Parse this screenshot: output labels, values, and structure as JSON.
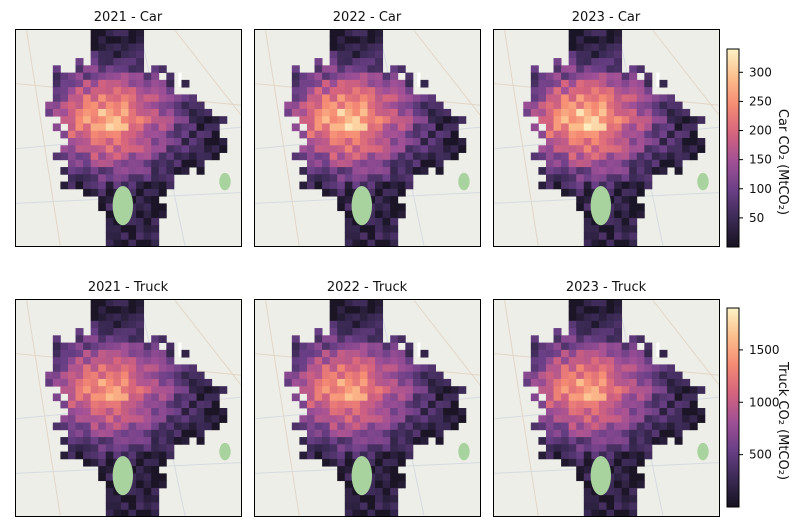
{
  "colors": {
    "map_background": "#eeeee8",
    "park_green": "#a9d39e",
    "frame": "#000000",
    "colormap_stops": [
      "#16121f",
      "#3b2a55",
      "#6a3f86",
      "#a05096",
      "#d4637e",
      "#f58a73",
      "#fcbe8c",
      "#fdf3c6"
    ]
  },
  "chart_data": [
    {
      "type": "heatmap",
      "title": "2021 - Car",
      "row": 0,
      "col": 0,
      "colorbar_group": "car",
      "intensity_scale": 1.0
    },
    {
      "type": "heatmap",
      "title": "2022 - Car",
      "row": 0,
      "col": 1,
      "colorbar_group": "car",
      "intensity_scale": 1.04
    },
    {
      "type": "heatmap",
      "title": "2023 - Car",
      "row": 0,
      "col": 2,
      "colorbar_group": "car",
      "intensity_scale": 1.06
    },
    {
      "type": "heatmap",
      "title": "2021 - Truck",
      "row": 1,
      "col": 0,
      "colorbar_group": "truck",
      "intensity_scale": 1.0
    },
    {
      "type": "heatmap",
      "title": "2022 - Truck",
      "row": 1,
      "col": 1,
      "colorbar_group": "truck",
      "intensity_scale": 1.02
    },
    {
      "type": "heatmap",
      "title": "2023 - Truck",
      "row": 1,
      "col": 2,
      "colorbar_group": "truck",
      "intensity_scale": 1.03
    }
  ],
  "colorbars": {
    "car": {
      "label": "Car CO₂ (MtCO₂)",
      "range": [
        0,
        340
      ],
      "ticks": [
        50,
        100,
        150,
        200,
        250,
        300
      ],
      "tick_labels": [
        "50",
        "100",
        "150",
        "200",
        "250",
        "300"
      ]
    },
    "truck": {
      "label": "Truck CO₂ (MtCO₂)",
      "range": [
        0,
        1900
      ],
      "ticks": [
        500,
        1000,
        1500
      ],
      "tick_labels": [
        "500",
        "1000",
        "1500"
      ]
    }
  }
}
